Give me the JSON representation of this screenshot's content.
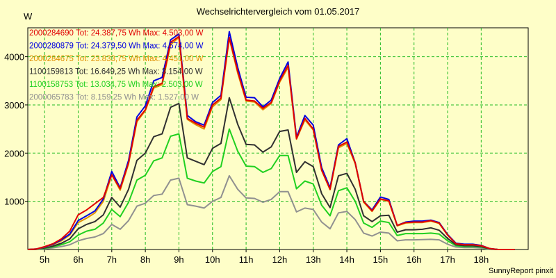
{
  "footer": "SunnyReport pinxit",
  "chart_data": {
    "type": "line",
    "title": "Wechselrichtervergleich vom 01.05.2017",
    "ylabel": "W",
    "xlabel": "",
    "x_range": [
      4.5,
      19.4
    ],
    "ylim": [
      0,
      4600
    ],
    "grid": true,
    "legend_position": "top-left",
    "x_ticks": [
      5,
      6,
      7,
      8,
      9,
      10,
      11,
      12,
      13,
      14,
      15,
      16,
      17,
      18
    ],
    "x_tick_labels": [
      "5h",
      "6h",
      "7h",
      "8h",
      "9h",
      "10h",
      "11h",
      "12h",
      "13h",
      "14h",
      "15h",
      "16h",
      "17h",
      "18h"
    ],
    "y_ticks": [
      1000,
      2000,
      3000,
      4000
    ],
    "x": [
      4.5,
      4.75,
      5.0,
      5.25,
      5.5,
      5.75,
      6.0,
      6.25,
      6.5,
      6.75,
      7.0,
      7.25,
      7.5,
      7.75,
      8.0,
      8.25,
      8.5,
      8.75,
      9.0,
      9.25,
      9.5,
      9.75,
      10.0,
      10.25,
      10.5,
      10.75,
      11.0,
      11.25,
      11.5,
      11.75,
      12.0,
      12.25,
      12.5,
      12.75,
      13.0,
      13.25,
      13.5,
      13.75,
      14.0,
      14.25,
      14.5,
      14.75,
      15.0,
      15.25,
      15.5,
      15.75,
      16.0,
      16.25,
      16.5,
      16.75,
      17.0,
      17.25,
      17.5,
      17.75,
      18.0,
      18.25,
      18.5,
      18.75,
      19.0
    ],
    "series": [
      {
        "name": "2000284690",
        "total": "24.387,75 Wh",
        "max": "4.503,00 W",
        "color": "#e00000",
        "values": [
          0,
          10,
          60,
          120,
          220,
          380,
          720,
          820,
          950,
          1080,
          1550,
          1260,
          1800,
          2680,
          2900,
          3380,
          3450,
          4300,
          4420,
          2720,
          2620,
          2540,
          3000,
          3140,
          4400,
          3700,
          3100,
          3080,
          2930,
          3050,
          3500,
          3820,
          2300,
          2720,
          2500,
          1650,
          1250,
          2140,
          2230,
          1800,
          1000,
          800,
          1050,
          1010,
          500,
          560,
          570,
          570,
          600,
          550,
          300,
          120,
          100,
          100,
          80,
          20,
          0,
          0,
          0
        ]
      },
      {
        "name": "2000280879",
        "total": "24.379,50 Wh",
        "max": "4.574,00 W",
        "color": "#0000e0",
        "values": [
          0,
          10,
          55,
          110,
          200,
          320,
          600,
          700,
          800,
          1050,
          1620,
          1280,
          1850,
          2750,
          2980,
          3500,
          3570,
          4350,
          4470,
          2780,
          2650,
          2580,
          3050,
          3200,
          4520,
          3780,
          3160,
          3150,
          2960,
          3100,
          3550,
          3890,
          2330,
          2780,
          2580,
          1700,
          1280,
          2170,
          2300,
          1800,
          1000,
          820,
          1090,
          1040,
          500,
          570,
          590,
          590,
          610,
          560,
          310,
          130,
          110,
          110,
          85,
          20,
          0,
          0,
          0
        ]
      },
      {
        "name": "2000284675",
        "total": "23.833,75 Wh",
        "max": "4.451,00 W",
        "color": "#e09000",
        "values": [
          0,
          8,
          50,
          100,
          180,
          300,
          560,
          650,
          760,
          1000,
          1550,
          1230,
          1780,
          2650,
          2880,
          3350,
          3420,
          4250,
          4400,
          2700,
          2590,
          2500,
          2960,
          3110,
          4380,
          3660,
          3080,
          3060,
          2900,
          3030,
          3470,
          3780,
          2290,
          2690,
          2480,
          1640,
          1240,
          2110,
          2200,
          1780,
          980,
          790,
          1040,
          1000,
          490,
          550,
          560,
          560,
          590,
          540,
          300,
          120,
          100,
          100,
          80,
          20,
          0,
          0,
          0
        ]
      },
      {
        "name": "1100159813",
        "total": "16.649,25 Wh",
        "max": "3.154,00 W",
        "color": "#303030",
        "values": [
          0,
          5,
          35,
          70,
          130,
          220,
          430,
          520,
          580,
          720,
          1080,
          880,
          1250,
          1850,
          2000,
          2340,
          2400,
          2950,
          3030,
          1900,
          1830,
          1760,
          2100,
          2200,
          3150,
          2600,
          2180,
          2170,
          2020,
          2130,
          2450,
          2480,
          1600,
          1820,
          1720,
          1160,
          870,
          1530,
          1580,
          1250,
          700,
          580,
          700,
          710,
          360,
          410,
          410,
          420,
          450,
          400,
          230,
          100,
          80,
          80,
          60,
          15,
          0,
          0,
          0
        ]
      },
      {
        "name": "1100158753",
        "total": "13.034,75 Wh",
        "max": "2.503,00 W",
        "color": "#20d020",
        "values": [
          0,
          4,
          25,
          55,
          100,
          160,
          300,
          380,
          420,
          550,
          830,
          680,
          980,
          1440,
          1540,
          1840,
          1900,
          2350,
          2400,
          1480,
          1420,
          1380,
          1620,
          1720,
          2500,
          2040,
          1730,
          1720,
          1600,
          1680,
          1950,
          1950,
          1260,
          1420,
          1360,
          920,
          700,
          1220,
          1280,
          1000,
          550,
          460,
          590,
          560,
          290,
          330,
          330,
          330,
          340,
          320,
          180,
          80,
          60,
          60,
          50,
          10,
          0,
          0,
          0
        ]
      },
      {
        "name": "2000065783",
        "total": "8.159,25 Wh",
        "max": "1.527,00 W",
        "color": "#909090",
        "values": [
          0,
          3,
          15,
          35,
          60,
          100,
          180,
          230,
          260,
          330,
          520,
          420,
          600,
          900,
          960,
          1120,
          1150,
          1440,
          1480,
          930,
          900,
          860,
          1000,
          1080,
          1530,
          1250,
          1070,
          1060,
          980,
          1040,
          1200,
          1200,
          780,
          860,
          830,
          570,
          430,
          760,
          790,
          620,
          340,
          280,
          360,
          340,
          180,
          200,
          200,
          205,
          210,
          200,
          110,
          50,
          40,
          40,
          30,
          5,
          0,
          0,
          0
        ]
      }
    ]
  }
}
